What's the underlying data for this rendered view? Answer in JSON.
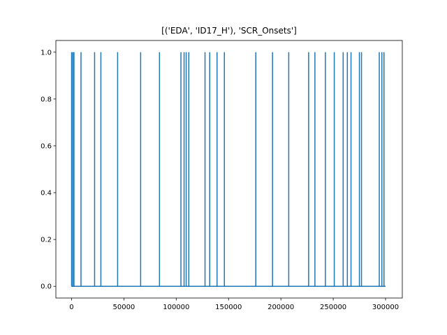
{
  "chart_data": {
    "type": "line",
    "title": "[('EDA', 'ID17_H'), 'SCR_Onsets']",
    "xlabel": "",
    "ylabel": "",
    "xlim": [
      -15000,
      316000
    ],
    "ylim": [
      -0.05,
      1.05
    ],
    "x_ticks": [
      0,
      50000,
      100000,
      150000,
      200000,
      250000,
      300000
    ],
    "x_tick_labels": [
      "0",
      "50000",
      "100000",
      "150000",
      "200000",
      "250000",
      "300000"
    ],
    "y_ticks": [
      0.0,
      0.2,
      0.4,
      0.6,
      0.8,
      1.0
    ],
    "y_tick_labels": [
      "0.0",
      "0.2",
      "0.4",
      "0.6",
      "0.8",
      "1.0"
    ],
    "grid": false,
    "x_range": [
      0,
      300000
    ],
    "series": [
      {
        "color": "#1f77b4",
        "baseline": 0,
        "spike_value": 1,
        "onsets_x": [
          0,
          1200,
          2300,
          9000,
          22000,
          28000,
          44000,
          66000,
          84000,
          104500,
          107500,
          109500,
          112000,
          127500,
          132000,
          139000,
          146000,
          176000,
          192000,
          207500,
          226500,
          232500,
          242500,
          251000,
          259500,
          263500,
          267000,
          275000,
          277000,
          294000,
          296500,
          298500
        ]
      }
    ]
  }
}
